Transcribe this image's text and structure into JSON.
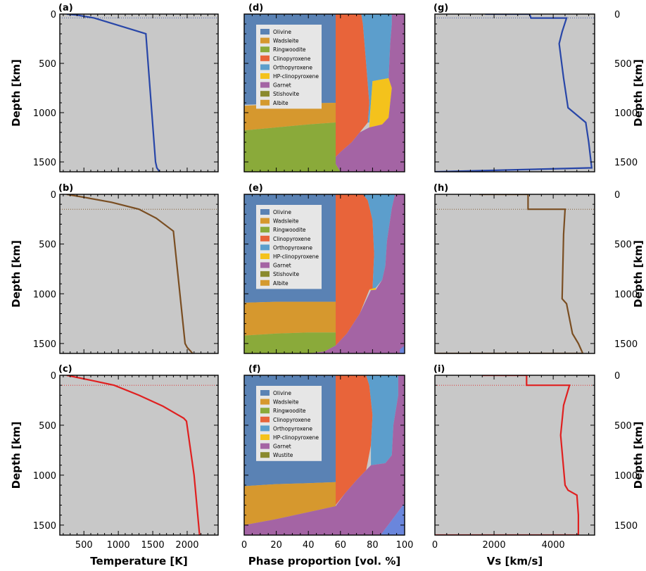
{
  "axis_labels": {
    "depth": "Depth [km]",
    "temperature": "Temperature [K]",
    "phase": "Phase proportion [vol. %]",
    "vs": "Vs [km/s]"
  },
  "colors": {
    "plot_bg": "#c8c8c8",
    "row_a": "#2846a8",
    "row_b": "#7a4e22",
    "row_c": "#e02020",
    "Olivine": "#5a82b4",
    "Wadsleite": "#d6982e",
    "Ringwoodite": "#8aaa3a",
    "Clinopyroxene": "#e8643a",
    "Orthopyroxene": "#5c9ecc",
    "HP-clinopyroxene": "#f4c21c",
    "Garnet": "#a464a4",
    "Stishovite": "#8a8a2e",
    "Albite": "#d49a2e",
    "Wustite": "#8a8a2e",
    "Extra": "#6a86dc"
  },
  "chart_data": [
    {
      "panel": "a",
      "type": "line",
      "series": [
        {
          "x": [
            250,
            400,
            650,
            1400,
            1540,
            1560,
            1600
          ],
          "y": [
            0,
            10,
            40,
            200,
            1500,
            1560,
            1600
          ]
        }
      ],
      "xlim": [
        150,
        2450
      ],
      "ylim": [
        1600,
        0
      ],
      "x_ticks": [
        500,
        1000,
        1500,
        2000
      ],
      "y_ticks": [
        0,
        500,
        1000,
        1500
      ],
      "ref_depth": 40
    },
    {
      "panel": "b",
      "type": "line",
      "series": [
        {
          "x": [
            250,
            500,
            900,
            1300,
            1550,
            1800,
            1970,
            2000,
            2080
          ],
          "y": [
            0,
            30,
            80,
            150,
            240,
            370,
            1500,
            1540,
            1600
          ]
        }
      ],
      "xlim": [
        150,
        2450
      ],
      "ylim": [
        1600,
        0
      ],
      "x_ticks": [
        500,
        1000,
        1500,
        2000
      ],
      "y_ticks": [
        0,
        500,
        1000,
        1500
      ],
      "ref_depth": 150
    },
    {
      "panel": "c",
      "type": "line",
      "series": [
        {
          "x": [
            250,
            600,
            940,
            1300,
            1650,
            1950,
            1990,
            2100,
            2180
          ],
          "y": [
            0,
            50,
            100,
            200,
            310,
            430,
            460,
            1000,
            1600
          ]
        }
      ],
      "xlim": [
        150,
        2450
      ],
      "ylim": [
        1600,
        0
      ],
      "x_ticks": [
        500,
        1000,
        1500,
        2000
      ],
      "y_ticks": [
        0,
        500,
        1000,
        1500
      ],
      "ref_depth": 100
    },
    {
      "panel": "d",
      "type": "area",
      "legend": [
        "Olivine",
        "Wadsleite",
        "Ringwoodite",
        "Clinopyroxene",
        "Orthopyroxene",
        "HP-clinopyroxene",
        "Garnet",
        "Stishovite",
        "Albite"
      ],
      "xlim": [
        0,
        100
      ],
      "ylim": [
        1600,
        0
      ],
      "x_ticks": [
        0,
        20,
        40,
        60,
        80,
        100
      ]
    },
    {
      "panel": "e",
      "type": "area",
      "legend": [
        "Olivine",
        "Wadsleite",
        "Ringwoodite",
        "Clinopyroxene",
        "Orthopyroxene",
        "HP-clinopyroxene",
        "Garnet",
        "Stishovite",
        "Albite"
      ],
      "xlim": [
        0,
        100
      ],
      "ylim": [
        1600,
        0
      ],
      "x_ticks": [
        0,
        20,
        40,
        60,
        80,
        100
      ]
    },
    {
      "panel": "f",
      "type": "area",
      "legend": [
        "Olivine",
        "Wadsleite",
        "Ringwoodite",
        "Clinopyroxene",
        "Orthopyroxene",
        "HP-clinopyroxene",
        "Garnet",
        "Wustite"
      ],
      "xlim": [
        0,
        100
      ],
      "ylim": [
        1600,
        0
      ],
      "x_ticks": [
        0,
        20,
        40,
        60,
        80,
        100
      ]
    },
    {
      "panel": "g",
      "type": "line",
      "series": [
        {
          "x": [
            1700,
            3200,
            3250,
            4450,
            4300,
            4200,
            4350,
            4500,
            4700,
            5100,
            5200,
            5300,
            0
          ],
          "y": [
            0,
            0,
            40,
            40,
            180,
            300,
            650,
            950,
            1000,
            1100,
            1300,
            1560,
            1600
          ]
        }
      ],
      "xlim": [
        0,
        5400
      ],
      "ylim": [
        1600,
        0
      ],
      "x_ticks": [
        0,
        2000,
        4000
      ],
      "ref_depth": 40
    },
    {
      "panel": "h",
      "type": "line",
      "series": [
        {
          "x": [
            1500,
            3150,
            3150,
            4400,
            4350,
            4300,
            4450,
            4650,
            4850,
            5000,
            0
          ],
          "y": [
            0,
            0,
            150,
            150,
            400,
            1050,
            1100,
            1400,
            1500,
            1600,
            1600
          ]
        }
      ],
      "xlim": [
        0,
        5400
      ],
      "ylim": [
        1600,
        0
      ],
      "x_ticks": [
        0,
        2000,
        4000
      ],
      "ref_depth": 150
    },
    {
      "panel": "i",
      "type": "line",
      "series": [
        {
          "x": [
            1600,
            3100,
            3100,
            4550,
            4350,
            4250,
            4400,
            4500,
            4800,
            4850,
            4850,
            0
          ],
          "y": [
            0,
            0,
            100,
            100,
            300,
            600,
            1100,
            1150,
            1200,
            1400,
            1600,
            1600
          ]
        }
      ],
      "xlim": [
        0,
        5400
      ],
      "ylim": [
        1600,
        0
      ],
      "x_ticks": [
        0,
        2000,
        4000
      ],
      "ref_depth": 100
    }
  ],
  "panel_letters": [
    "(a)",
    "(b)",
    "(c)",
    "(d)",
    "(e)",
    "(f)",
    "(g)",
    "(h)",
    "(i)"
  ]
}
